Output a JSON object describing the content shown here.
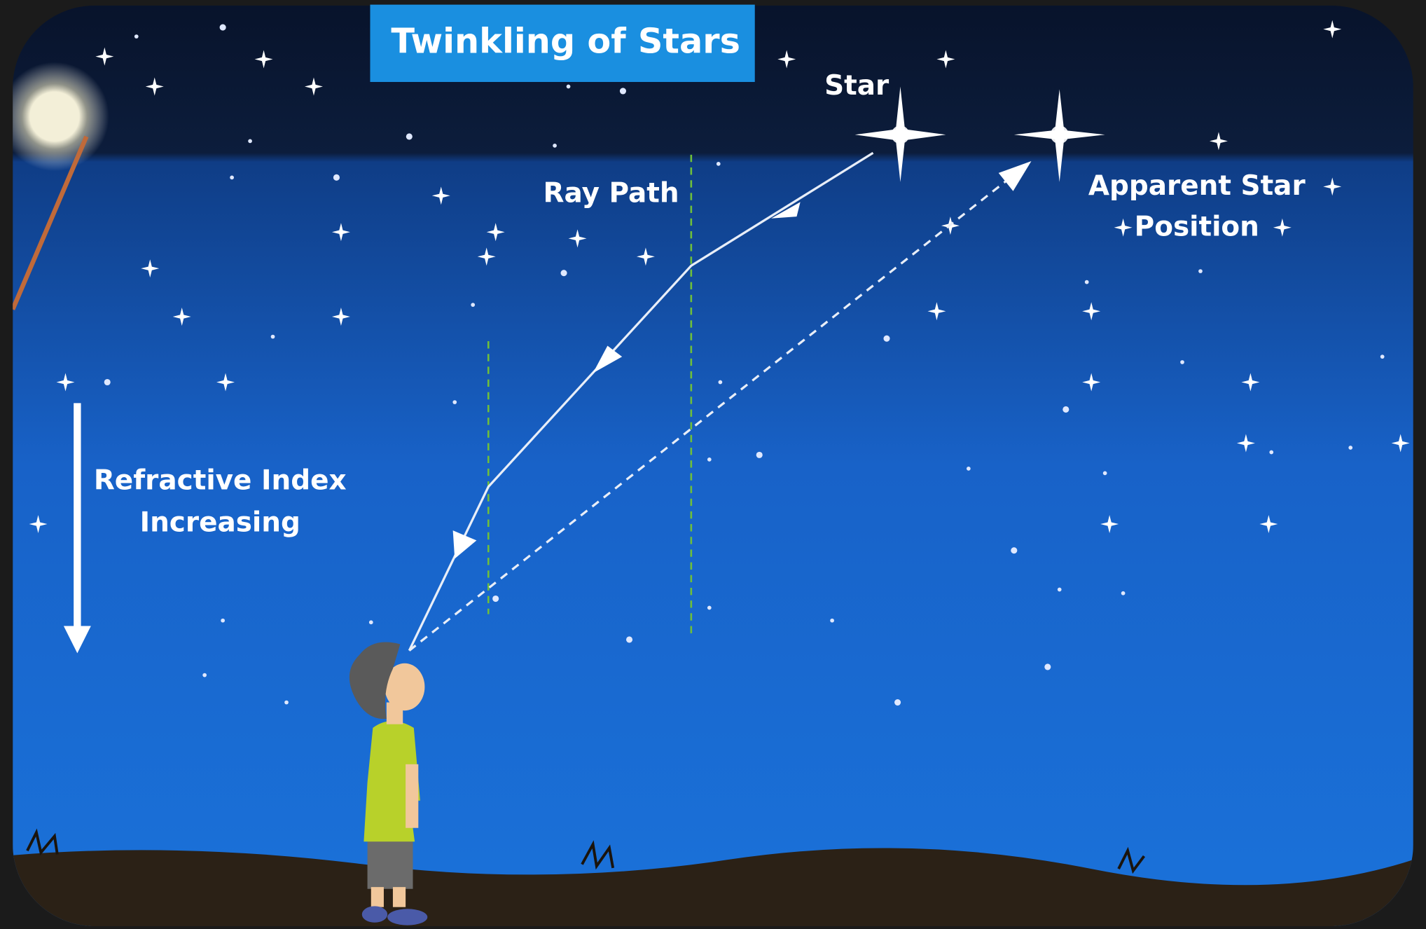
{
  "title": "Twinkling of Stars",
  "labels": {
    "star": "Star",
    "ray_path": "Ray Path",
    "apparent_star_position": [
      "Apparent Star",
      "Position"
    ],
    "refractive_index": [
      "Refractive Index",
      "Increasing"
    ]
  }
}
